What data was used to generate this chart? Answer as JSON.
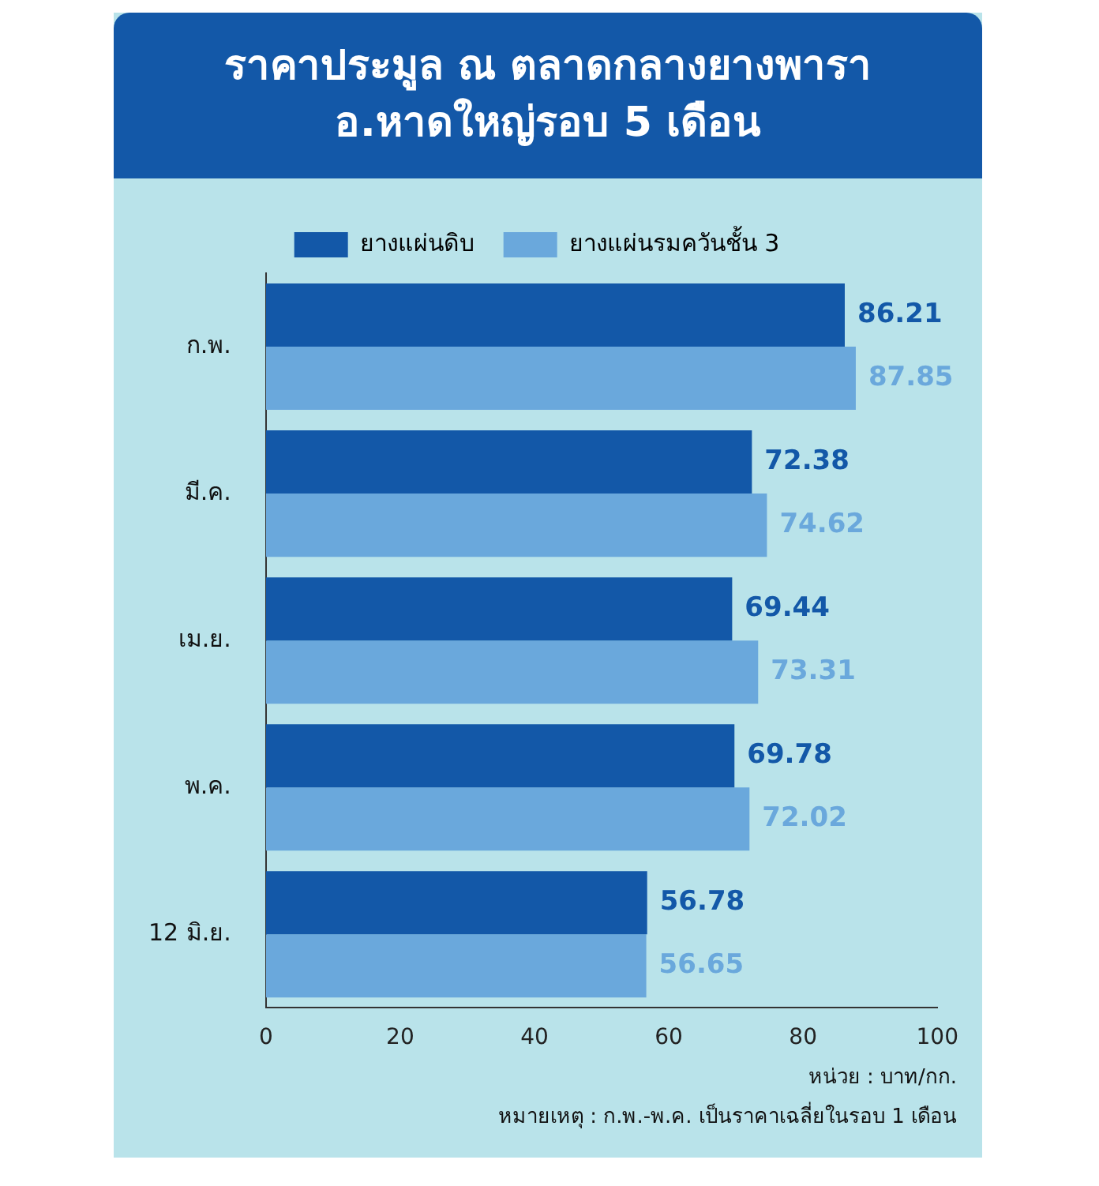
{
  "chart_data": {
    "type": "bar",
    "orientation": "horizontal",
    "title": "ราคาประมูล ณ ตลาดกลางยางพารา อ.หาดใหญ่รอบ 5 เดือน",
    "categories": [
      "ก.พ.",
      "มี.ค.",
      "เม.ย.",
      "พ.ค.",
      "12 มิ.ย."
    ],
    "series": [
      {
        "name": "ยางแผ่นดิบ",
        "color": "#1358a8",
        "values": [
          86.21,
          72.38,
          69.44,
          69.78,
          56.78
        ]
      },
      {
        "name": "ยางแผ่นรมควันชั้น 3",
        "color": "#6aa8dc",
        "values": [
          87.85,
          74.62,
          73.31,
          72.02,
          56.65
        ]
      }
    ],
    "xlim": [
      0,
      100
    ],
    "xticks": [
      0,
      20,
      40,
      60,
      80,
      100
    ],
    "grid": false,
    "legend": "top",
    "data_labels": true,
    "annotations": [
      "หน่วย : บาท/กก.",
      "หมายเหตุ : ก.พ.-พ.ค. เป็นราคาเฉลี่ยในรอบ 1 เดือน"
    ]
  }
}
